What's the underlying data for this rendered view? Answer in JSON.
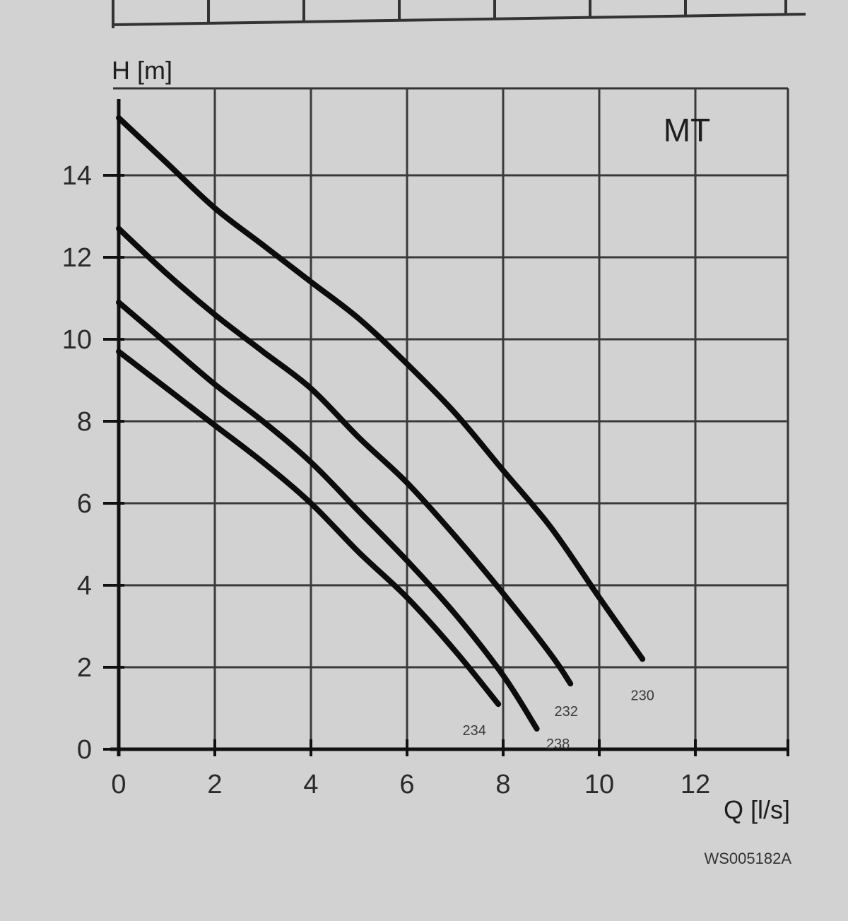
{
  "chart_data": {
    "type": "line",
    "title": "MT",
    "xlabel": "Q [l/s]",
    "ylabel": "H [m]",
    "xlim": [
      0,
      14
    ],
    "ylim": [
      0,
      16
    ],
    "x_ticks": [
      0,
      2,
      4,
      6,
      8,
      10,
      12
    ],
    "y_ticks": [
      0,
      2,
      4,
      6,
      8,
      10,
      12,
      14
    ],
    "grid": true,
    "legend": "none",
    "series": [
      {
        "name": "230",
        "x": [
          0,
          1,
          2,
          3,
          4,
          5,
          6,
          7,
          8,
          9,
          10,
          10.9
        ],
        "y": [
          15.4,
          14.3,
          13.2,
          12.3,
          11.4,
          10.5,
          9.4,
          8.2,
          6.8,
          5.4,
          3.7,
          2.2
        ]
      },
      {
        "name": "232",
        "x": [
          0,
          1,
          2,
          3,
          4,
          5,
          6,
          7,
          8,
          9,
          9.4
        ],
        "y": [
          12.7,
          11.6,
          10.6,
          9.7,
          8.8,
          7.6,
          6.5,
          5.2,
          3.8,
          2.3,
          1.6
        ]
      },
      {
        "name": "238",
        "x": [
          0,
          1,
          2,
          3,
          4,
          5,
          6,
          7,
          8,
          8.7
        ],
        "y": [
          10.9,
          9.9,
          8.9,
          8.0,
          7.0,
          5.8,
          4.6,
          3.3,
          1.8,
          0.5
        ]
      },
      {
        "name": "234",
        "x": [
          0,
          1,
          2,
          3,
          4,
          5,
          6,
          7,
          7.9
        ],
        "y": [
          9.7,
          8.8,
          7.9,
          7.0,
          6.0,
          4.8,
          3.7,
          2.4,
          1.1
        ]
      }
    ]
  },
  "figure_code": "WS005182A"
}
